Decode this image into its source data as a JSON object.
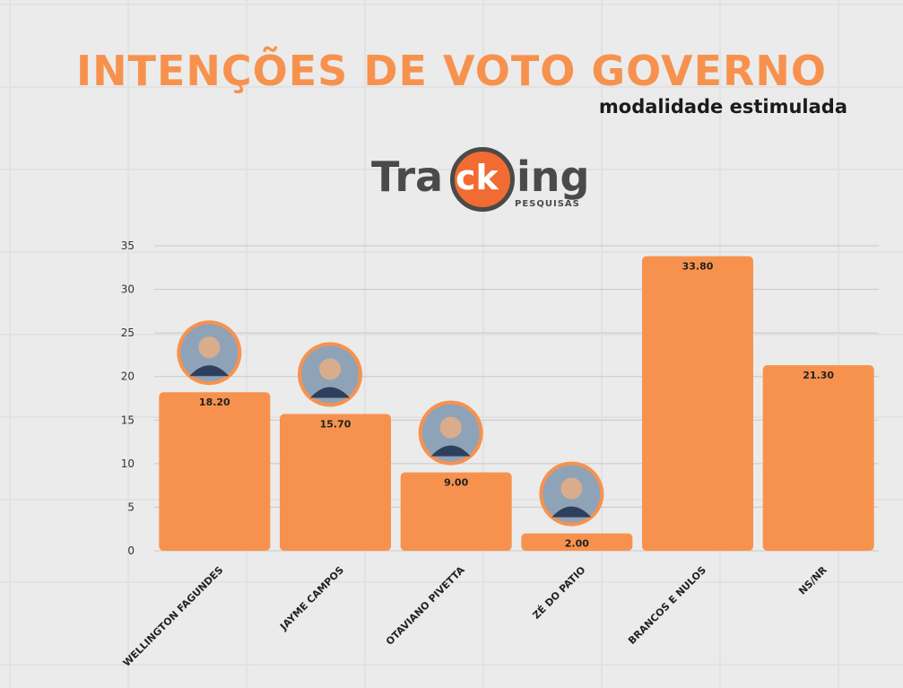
{
  "header": {
    "title": "INTENÇÕES DE VOTO GOVERNO",
    "subtitle": "modalidade estimulada"
  },
  "logo": {
    "part1": "Tra",
    "part2": "ck",
    "part3": "ing",
    "sub": "PESQUISAS"
  },
  "colors": {
    "bar": "#f7924e",
    "title": "#f7924e",
    "grid": "#c8c8c8"
  },
  "chart_data": {
    "type": "bar",
    "categories": [
      "WELLINGTON FAGUNDES",
      "JAYME CAMPOS",
      "OTAVIANO PIVETTA",
      "ZÉ DO PATIO",
      "BRANCOS E NULOS",
      "NS/NR"
    ],
    "values": [
      18.2,
      15.7,
      9.0,
      2.0,
      33.8,
      21.3
    ],
    "value_labels": [
      "18.20",
      "15.70",
      "9.00",
      "2.00",
      "33.80",
      "21.30"
    ],
    "ylim": [
      0,
      35
    ],
    "yticks": [
      0,
      5,
      10,
      15,
      20,
      25,
      30,
      35
    ],
    "grid": true,
    "has_photo": [
      true,
      true,
      true,
      true,
      false,
      false
    ]
  }
}
